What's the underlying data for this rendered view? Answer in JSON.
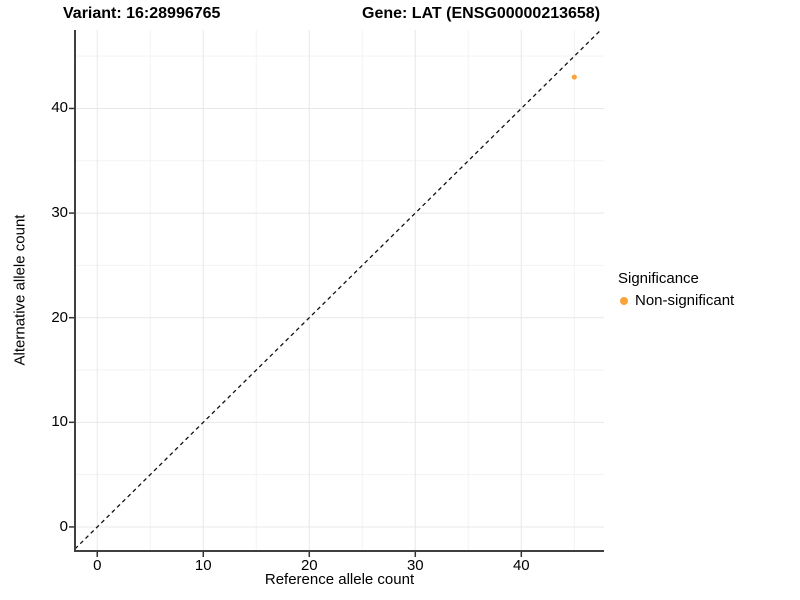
{
  "header": {
    "variant_title": "Variant: 16:28996765",
    "gene_title": "Gene: LAT (ENSG00000213658)"
  },
  "chart_data": {
    "type": "scatter",
    "xlabel": "Reference allele count",
    "ylabel": "Alternative allele count",
    "xlim": [
      -2.1,
      47.8
    ],
    "ylim": [
      -2.3,
      47.5
    ],
    "x_major_ticks": [
      0,
      10,
      20,
      30,
      40
    ],
    "x_minor_ticks": [
      5,
      15,
      25,
      35,
      45
    ],
    "y_major_ticks": [
      0,
      10,
      20,
      30,
      40
    ],
    "y_minor_ticks": [
      5,
      15,
      25,
      35,
      45
    ],
    "grid": true,
    "reference_line": {
      "type": "identity",
      "slope": 1,
      "intercept": 0,
      "style": "dashed",
      "color": "#111111"
    },
    "series": [
      {
        "name": "Non-significant",
        "color": "#FAA43A",
        "point_radius": 2.6,
        "points": [
          {
            "x": 45,
            "y": 43
          }
        ]
      }
    ],
    "legend": {
      "position": "right",
      "title": "Significance",
      "entries": [
        {
          "label": "Non-significant",
          "color": "#FAA43A"
        }
      ]
    },
    "colors": {
      "axis_line": "#3f3f3f",
      "tick_mark": "#333333",
      "grid_major": "#e8e8e8",
      "grid_minor": "#f3f3f3",
      "text": "#000000",
      "background": "#ffffff"
    }
  }
}
